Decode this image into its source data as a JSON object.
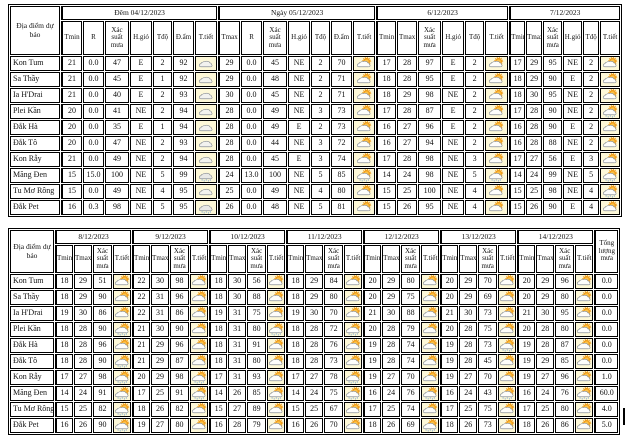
{
  "locations": [
    "Kon Tum",
    "Sa Thầy",
    "Ia H'Drai",
    "Plei Kần",
    "Đắk Hà",
    "Đắk Tô",
    "Kon Rẫy",
    "Măng Đen",
    "Tu Mơ Rông",
    "Đắk Pet"
  ],
  "colors": {
    "icon_bg": "#fdf8d8",
    "border": "#000000",
    "sun": "#f6a21d",
    "cloud_edge": "#8c9196",
    "rain_drop": "#7fa8d0"
  },
  "table1": {
    "location_header": "Địa điểm dự báo",
    "groups": [
      {
        "title": "Đêm 04/12/2023",
        "cols": [
          "Tmin",
          "R",
          "Xác suất mưa",
          "H.gió",
          "Tđộ",
          "Đ.ẩm",
          "T.tiết"
        ]
      },
      {
        "title": "Ngày 05/12/2023",
        "cols": [
          "Tmax",
          "R",
          "Xác suất mưa",
          "H.gió",
          "Tđộ",
          "Đ.ẩm",
          "T.tiết"
        ]
      },
      {
        "title": "6/12/2023",
        "cols": [
          "Tmin",
          "Tmax",
          "Xác suất mưa",
          "H.gió",
          "Tđộ",
          "T.tiết"
        ]
      },
      {
        "title": "7/12/2023",
        "cols": [
          "Tmin",
          "Tmax",
          "Xác suất mưa",
          "H.gió",
          "Tđộ",
          "T.tiết"
        ]
      }
    ],
    "rows": [
      {
        "location": "Kon Tum",
        "cells": [
          [
            "21",
            "0.0",
            "47",
            "E",
            "2",
            "92",
            "icon:night-cloud"
          ],
          [
            "29",
            "0.0",
            "45",
            "NE",
            "2",
            "70",
            "icon:sun-cloud"
          ],
          [
            "17",
            "28",
            "97",
            "E",
            "2",
            "icon:sun-cloud"
          ],
          [
            "17",
            "29",
            "95",
            "NE",
            "2",
            "icon:sun-cloud"
          ]
        ]
      },
      {
        "location": "Sa Thầy",
        "cells": [
          [
            "21",
            "0.0",
            "45",
            "E",
            "1",
            "92",
            "icon:night-cloud"
          ],
          [
            "29",
            "0.0",
            "48",
            "NE",
            "2",
            "71",
            "icon:sun-cloud"
          ],
          [
            "18",
            "28",
            "95",
            "E",
            "2",
            "icon:sun-cloud"
          ],
          [
            "18",
            "29",
            "90",
            "E",
            "2",
            "icon:sun-cloud"
          ]
        ]
      },
      {
        "location": "Ia H'Drai",
        "cells": [
          [
            "21",
            "0.0",
            "40",
            "E",
            "2",
            "93",
            "icon:night-cloud"
          ],
          [
            "30",
            "0.0",
            "45",
            "NE",
            "2",
            "71",
            "icon:sun-cloud"
          ],
          [
            "18",
            "29",
            "98",
            "NE",
            "2",
            "icon:sun-cloud"
          ],
          [
            "18",
            "30",
            "95",
            "NE",
            "2",
            "icon:sun-cloud"
          ]
        ]
      },
      {
        "location": "Plei Kần",
        "cells": [
          [
            "20",
            "0.0",
            "41",
            "NE",
            "2",
            "94",
            "icon:night-cloud"
          ],
          [
            "28",
            "0.0",
            "49",
            "NE",
            "3",
            "73",
            "icon:sun-cloud"
          ],
          [
            "17",
            "28",
            "87",
            "E",
            "2",
            "icon:sun-cloud"
          ],
          [
            "17",
            "28",
            "90",
            "NE",
            "2",
            "icon:sun-rain"
          ]
        ]
      },
      {
        "location": "Đắk Hà",
        "cells": [
          [
            "20",
            "0.0",
            "35",
            "E",
            "1",
            "94",
            "icon:night-cloud"
          ],
          [
            "28",
            "0.0",
            "49",
            "E",
            "2",
            "73",
            "icon:sun-cloud"
          ],
          [
            "16",
            "27",
            "96",
            "E",
            "2",
            "icon:sun-cloud"
          ],
          [
            "16",
            "28",
            "90",
            "E",
            "2",
            "icon:sun-cloud"
          ]
        ]
      },
      {
        "location": "Đắk Tô",
        "cells": [
          [
            "20",
            "0.0",
            "47",
            "NE",
            "2",
            "93",
            "icon:night-cloud"
          ],
          [
            "28",
            "0.0",
            "44",
            "NE",
            "3",
            "72",
            "icon:sun-cloud"
          ],
          [
            "16",
            "27",
            "94",
            "NE",
            "2",
            "icon:sun-cloud"
          ],
          [
            "16",
            "28",
            "88",
            "NE",
            "2",
            "icon:sun-cloud"
          ]
        ]
      },
      {
        "location": "Kon Rẫy",
        "cells": [
          [
            "21",
            "0.0",
            "49",
            "NE",
            "2",
            "94",
            "icon:night-cloud"
          ],
          [
            "28",
            "0.0",
            "45",
            "E",
            "3",
            "74",
            "icon:sun-cloud"
          ],
          [
            "17",
            "28",
            "98",
            "NE",
            "3",
            "icon:sun-cloud"
          ],
          [
            "17",
            "27",
            "56",
            "E",
            "3",
            "icon:sun-cloud"
          ]
        ]
      },
      {
        "location": "Măng Đen",
        "cells": [
          [
            "15",
            "15.0",
            "100",
            "NE",
            "5",
            "99",
            "icon:rain-cloud"
          ],
          [
            "24",
            "13.0",
            "100",
            "NE",
            "5",
            "85",
            "icon:sun-rain"
          ],
          [
            "14",
            "24",
            "98",
            "NE",
            "5",
            "icon:sun-rain"
          ],
          [
            "14",
            "24",
            "99",
            "NE",
            "5",
            "icon:sun-rain"
          ]
        ]
      },
      {
        "location": "Tu Mơ Rông",
        "cells": [
          [
            "15",
            "0.0",
            "49",
            "NE",
            "4",
            "95",
            "icon:night-cloud"
          ],
          [
            "25",
            "0.0",
            "49",
            "NE",
            "4",
            "80",
            "icon:sun-cloud"
          ],
          [
            "15",
            "25",
            "100",
            "NE",
            "4",
            "icon:sun-cloud"
          ],
          [
            "15",
            "25",
            "98",
            "NE",
            "4",
            "icon:sun-rain"
          ]
        ]
      },
      {
        "location": "Đắk Pet",
        "cells": [
          [
            "16",
            "0.3",
            "98",
            "NE",
            "5",
            "95",
            "icon:rain-cloud"
          ],
          [
            "26",
            "0.0",
            "48",
            "NE",
            "5",
            "81",
            "icon:sun-cloud"
          ],
          [
            "15",
            "26",
            "95",
            "NE",
            "4",
            "icon:sun-cloud"
          ],
          [
            "15",
            "26",
            "90",
            "E",
            "4",
            "icon:sun-cloud"
          ]
        ]
      }
    ]
  },
  "table2": {
    "location_header": "Địa điểm dự báo",
    "total_header": "Tổng lượng mưa",
    "groups": [
      {
        "title": "8/12/2023",
        "cols": [
          "Tmin",
          "Tmax",
          "Xác suất mưa",
          "T.tiết"
        ]
      },
      {
        "title": "9/12/2023",
        "cols": [
          "Tmin",
          "Tmax",
          "Xác suất mưa",
          "T.tiết"
        ]
      },
      {
        "title": "10/12/2023",
        "cols": [
          "Tmin",
          "Tmax",
          "Xác suất mưa",
          "T.tiết"
        ]
      },
      {
        "title": "11/12/2023",
        "cols": [
          "Tmin",
          "Tmax",
          "Xác suất mưa",
          "T.tiết"
        ]
      },
      {
        "title": "12/12/2023",
        "cols": [
          "Tmin",
          "Tmax",
          "Xác suất mưa",
          "T.tiết"
        ]
      },
      {
        "title": "13/12/2023",
        "cols": [
          "Tmin",
          "Tmax",
          "Xác suất mưa",
          "T.tiết"
        ]
      },
      {
        "title": "14/12/2023",
        "cols": [
          "Tmin",
          "Tmax",
          "Xác suất mưa",
          "T.tiết"
        ]
      }
    ],
    "rows": [
      {
        "location": "Kon Tum",
        "cells": [
          [
            "18",
            "29",
            "51",
            "icon:sun-cloud"
          ],
          [
            "22",
            "30",
            "98",
            "icon:sun-cloud"
          ],
          [
            "18",
            "30",
            "56",
            "icon:sun-cloud"
          ],
          [
            "18",
            "29",
            "84",
            "icon:sun-cloud"
          ],
          [
            "20",
            "29",
            "80",
            "icon:sun-cloud"
          ],
          [
            "20",
            "29",
            "70",
            "icon:sun-cloud"
          ],
          [
            "20",
            "29",
            "96",
            "icon:sun-cloud"
          ]
        ],
        "total": "0.0"
      },
      {
        "location": "Sa Thầy",
        "cells": [
          [
            "18",
            "29",
            "90",
            "icon:sun-cloud"
          ],
          [
            "22",
            "31",
            "96",
            "icon:sun-cloud"
          ],
          [
            "18",
            "30",
            "88",
            "icon:sun-cloud"
          ],
          [
            "18",
            "29",
            "80",
            "icon:sun-cloud"
          ],
          [
            "20",
            "29",
            "75",
            "icon:sun-cloud"
          ],
          [
            "20",
            "29",
            "69",
            "icon:sun-cloud"
          ],
          [
            "20",
            "29",
            "80",
            "icon:sun-cloud"
          ]
        ],
        "total": "0.0"
      },
      {
        "location": "Ia H'Drai",
        "cells": [
          [
            "19",
            "30",
            "86",
            "icon:sun-cloud"
          ],
          [
            "22",
            "31",
            "86",
            "icon:sun-cloud"
          ],
          [
            "19",
            "31",
            "75",
            "icon:sun-cloud"
          ],
          [
            "19",
            "30",
            "70",
            "icon:sun-cloud"
          ],
          [
            "21",
            "30",
            "88",
            "icon:sun-cloud"
          ],
          [
            "21",
            "30",
            "73",
            "icon:sun-cloud"
          ],
          [
            "21",
            "30",
            "95",
            "icon:sun-cloud"
          ]
        ],
        "total": "0.0"
      },
      {
        "location": "Plei Kần",
        "cells": [
          [
            "18",
            "28",
            "90",
            "icon:sun-rain"
          ],
          [
            "21",
            "30",
            "90",
            "icon:sun-cloud"
          ],
          [
            "18",
            "31",
            "80",
            "icon:sun-rain"
          ],
          [
            "18",
            "28",
            "72",
            "icon:sun-rain"
          ],
          [
            "20",
            "28",
            "79",
            "icon:sun-cloud"
          ],
          [
            "20",
            "28",
            "75",
            "icon:sun-cloud"
          ],
          [
            "20",
            "28",
            "80",
            "icon:sun-cloud"
          ]
        ],
        "total": "0.0"
      },
      {
        "location": "Đắk Hà",
        "cells": [
          [
            "18",
            "28",
            "96",
            "icon:sun-cloud"
          ],
          [
            "21",
            "29",
            "96",
            "icon:sun-cloud"
          ],
          [
            "18",
            "31",
            "91",
            "icon:sun-cloud"
          ],
          [
            "18",
            "28",
            "76",
            "icon:sun-cloud"
          ],
          [
            "19",
            "28",
            "74",
            "icon:sun-cloud"
          ],
          [
            "19",
            "28",
            "73",
            "icon:sun-rain"
          ],
          [
            "19",
            "28",
            "87",
            "icon:sun-cloud"
          ]
        ],
        "total": "0.0"
      },
      {
        "location": "Đắk Tô",
        "cells": [
          [
            "18",
            "28",
            "90",
            "icon:sun-rain"
          ],
          [
            "21",
            "29",
            "87",
            "icon:sun-cloud"
          ],
          [
            "18",
            "31",
            "80",
            "icon:sun-cloud"
          ],
          [
            "18",
            "28",
            "73",
            "icon:sun-cloud"
          ],
          [
            "19",
            "28",
            "74",
            "icon:sun-cloud"
          ],
          [
            "19",
            "28",
            "45",
            "icon:sun-cloud"
          ],
          [
            "19",
            "29",
            "85",
            "icon:sun-cloud"
          ]
        ],
        "total": "0.0"
      },
      {
        "location": "Kon Rẫy",
        "cells": [
          [
            "17",
            "27",
            "98",
            "icon:sun-rain"
          ],
          [
            "20",
            "29",
            "98",
            "icon:sun-rain"
          ],
          [
            "17",
            "31",
            "93",
            "icon:sun-cloud"
          ],
          [
            "17",
            "27",
            "78",
            "icon:sun-rain"
          ],
          [
            "19",
            "27",
            "70",
            "icon:sun-cloud"
          ],
          [
            "19",
            "27",
            "70",
            "icon:sun-cloud"
          ],
          [
            "19",
            "27",
            "96",
            "icon:sun-cloud"
          ]
        ],
        "total": "1.0"
      },
      {
        "location": "Măng Đen",
        "cells": [
          [
            "14",
            "24",
            "91",
            "icon:sun-rain"
          ],
          [
            "17",
            "25",
            "91",
            "icon:sun-rain"
          ],
          [
            "14",
            "26",
            "85",
            "icon:sun-rain"
          ],
          [
            "14",
            "24",
            "75",
            "icon:sun-rain"
          ],
          [
            "16",
            "24",
            "76",
            "icon:sun-rain"
          ],
          [
            "16",
            "24",
            "43",
            "icon:sun-rain"
          ],
          [
            "16",
            "24",
            "76",
            "icon:sun-rain"
          ]
        ],
        "total": "60.0"
      },
      {
        "location": "Tu Mơ Rông",
        "cells": [
          [
            "15",
            "25",
            "82",
            "icon:sun-rain"
          ],
          [
            "18",
            "26",
            "82",
            "icon:sun-cloud"
          ],
          [
            "15",
            "27",
            "89",
            "icon:sun-cloud"
          ],
          [
            "15",
            "25",
            "67",
            "icon:sun-cloud"
          ],
          [
            "17",
            "25",
            "74",
            "icon:sun-cloud"
          ],
          [
            "17",
            "25",
            "75",
            "icon:sun-cloud"
          ],
          [
            "17",
            "25",
            "80",
            "icon:sun-cloud"
          ]
        ],
        "total": "4.0"
      },
      {
        "location": "Đắk Pet",
        "cells": [
          [
            "16",
            "26",
            "90",
            "icon:sun-rain"
          ],
          [
            "19",
            "27",
            "80",
            "icon:sun-cloud"
          ],
          [
            "16",
            "28",
            "79",
            "icon:sun-cloud"
          ],
          [
            "16",
            "26",
            "70",
            "icon:sun-cloud"
          ],
          [
            "18",
            "26",
            "69",
            "icon:sun-rain"
          ],
          [
            "18",
            "26",
            "73",
            "icon:sun-cloud"
          ],
          [
            "18",
            "26",
            "86",
            "icon:sun-cloud"
          ]
        ],
        "total": "5.0"
      }
    ]
  }
}
